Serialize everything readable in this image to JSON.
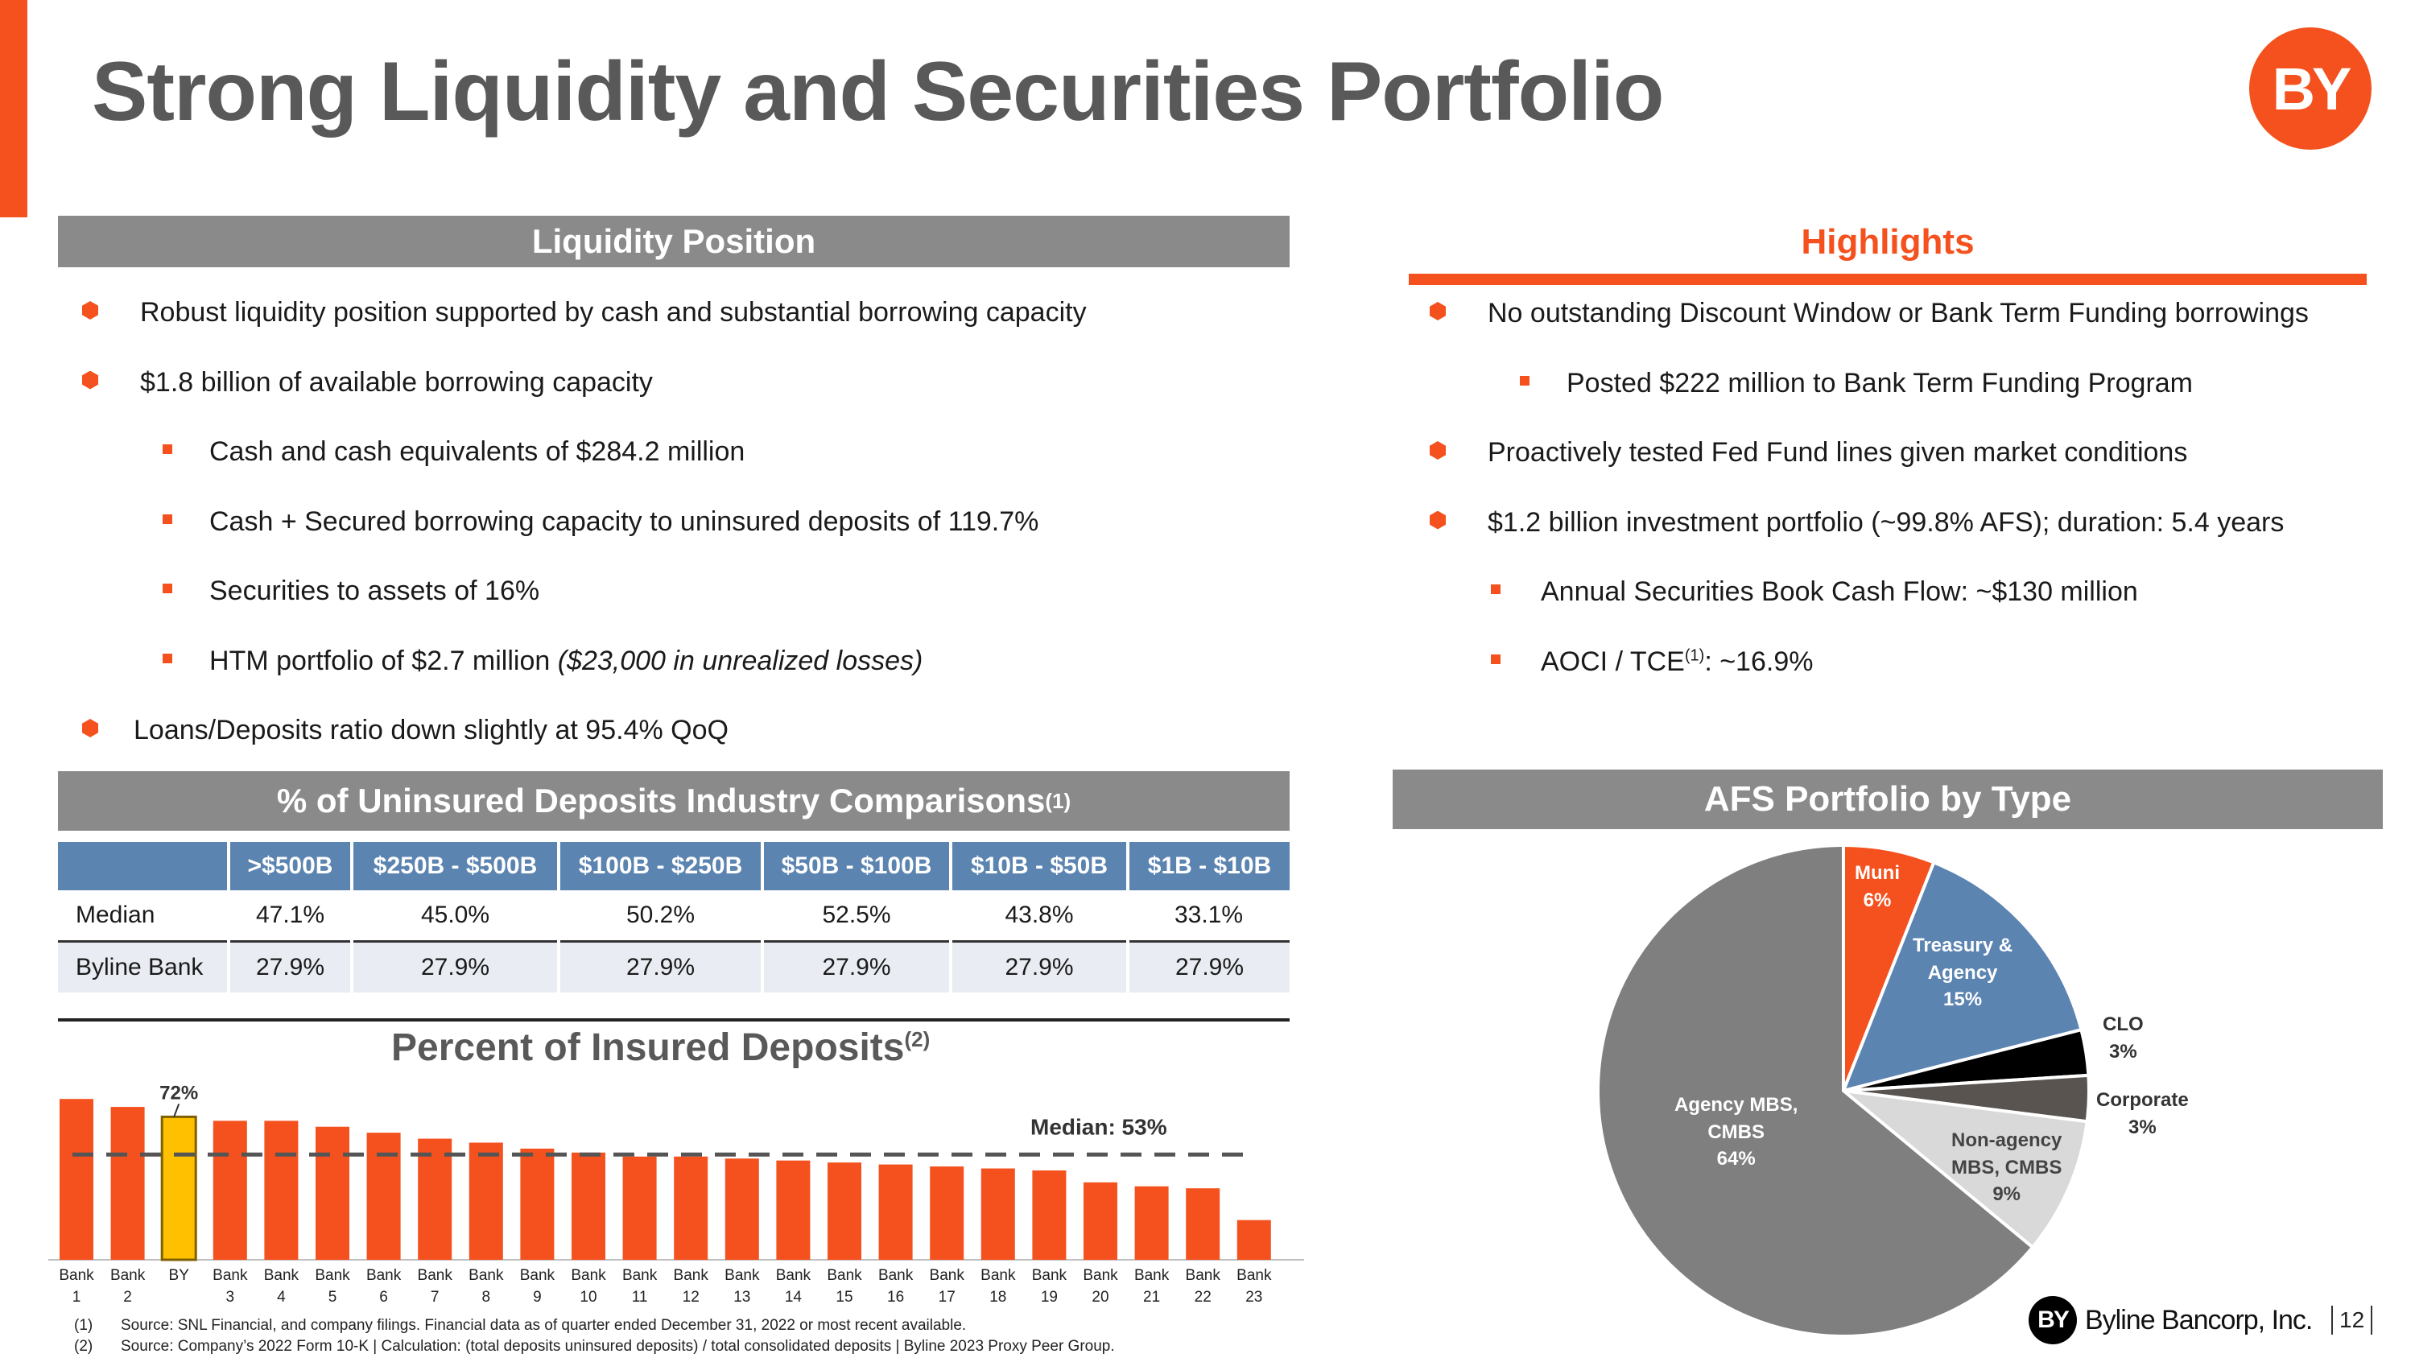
{
  "header": {
    "title": "Strong Liquidity and Securities Portfolio",
    "logo_text": "BY"
  },
  "liquidity": {
    "heading": "Liquidity Position",
    "items": [
      {
        "level": 1,
        "text": "Robust liquidity position supported by cash and substantial borrowing capacity"
      },
      {
        "level": 1,
        "text": "$1.8 billion of available borrowing capacity"
      },
      {
        "level": 2,
        "text": "Cash and cash equivalents of $284.2 million"
      },
      {
        "level": 2,
        "text": "Cash + Secured borrowing capacity to uninsured deposits of 119.7%"
      },
      {
        "level": 2,
        "text": "Securities to assets of 16%"
      },
      {
        "level": 2,
        "text": "HTM portfolio of $2.7 million ",
        "italic": "($23,000 in unrealized losses)"
      },
      {
        "level": 1,
        "text": "Loans/Deposits ratio down slightly at 95.4% QoQ"
      }
    ]
  },
  "highlights": {
    "heading": "Highlights",
    "items": [
      {
        "level": 1,
        "text": "No outstanding Discount Window or Bank Term Funding borrowings"
      },
      {
        "level": 2,
        "text": "Posted $222 million to Bank Term Funding Program"
      },
      {
        "level": 1,
        "text": "Proactively tested Fed Fund lines given market conditions"
      },
      {
        "level": 1,
        "text": "$1.2 billion investment portfolio (~99.8% AFS); duration: 5.4 years"
      },
      {
        "level": 2,
        "text": "Annual Securities Book Cash Flow: ~$130 million"
      },
      {
        "level": 2,
        "text": "AOCI / TCE",
        "sup": "(1)",
        "after": ": ~16.9%"
      }
    ]
  },
  "uninsured": {
    "heading": "% of Uninsured Deposits Industry Comparisons",
    "heading_sup": "(1)",
    "columns": [
      ">$500B",
      "$250B - $500B",
      "$100B - $250B",
      "$50B - $100B",
      "$10B - $50B",
      "$1B - $10B"
    ],
    "rows": [
      {
        "label": "Median",
        "values": [
          "47.1%",
          "45.0%",
          "50.2%",
          "52.5%",
          "43.8%",
          "33.1%"
        ]
      },
      {
        "label": "Byline Bank",
        "values": [
          "27.9%",
          "27.9%",
          "27.9%",
          "27.9%",
          "27.9%",
          "27.9%"
        ]
      }
    ]
  },
  "chart_data": [
    {
      "type": "bar",
      "title": "Percent of Insured Deposits",
      "title_sup": "(2)",
      "categories": [
        "Bank 1",
        "Bank 2",
        "BY",
        "Bank 3",
        "Bank 4",
        "Bank 5",
        "Bank 6",
        "Bank 7",
        "Bank 8",
        "Bank 9",
        "Bank 10",
        "Bank 11",
        "Bank 12",
        "Bank 13",
        "Bank 14",
        "Bank 15",
        "Bank 16",
        "Bank 17",
        "Bank 18",
        "Bank 19",
        "Bank 20",
        "Bank 21",
        "Bank 22",
        "Bank 23"
      ],
      "values": [
        81,
        77,
        72,
        70,
        70,
        67,
        64,
        61,
        59,
        56,
        54,
        52,
        52,
        51,
        50,
        49,
        48,
        47,
        46,
        45,
        39,
        37,
        36,
        20
      ],
      "highlight": "BY",
      "highlight_label": "72%",
      "median": 53,
      "median_label": "Median: 53%",
      "ylim": [
        0,
        90
      ],
      "xlabel": "",
      "ylabel": "",
      "colors": {
        "bar": "#f4511e",
        "highlight": "#ffc000",
        "highlight_border": "#7f6000",
        "median_line": "#555555"
      }
    },
    {
      "type": "pie",
      "title": "AFS Portfolio by Type",
      "slices": [
        {
          "name": "Muni",
          "value": 6,
          "label": "6%",
          "color": "#f4511e"
        },
        {
          "name": "Treasury & Agency",
          "value": 15,
          "label": "15%",
          "color": "#5b84b1"
        },
        {
          "name": "CLO",
          "value": 3,
          "label": "3%",
          "color": "#000000"
        },
        {
          "name": "Corporate",
          "value": 3,
          "label": "3%",
          "color": "#595450"
        },
        {
          "name": "Non-agency MBS, CMBS",
          "value": 9,
          "label": "9%",
          "color": "#d9d9d9"
        },
        {
          "name": "Agency MBS, CMBS",
          "value": 64,
          "label": "64%",
          "color": "#7f7f7f"
        }
      ]
    }
  ],
  "pie_labels": {
    "muni": [
      "Muni",
      "6%"
    ],
    "treasury": [
      "Treasury &",
      "Agency",
      "15%"
    ],
    "clo": [
      "CLO",
      "3%"
    ],
    "corporate": [
      "Corporate",
      "3%"
    ],
    "nonagency": [
      "Non-agency",
      "MBS, CMBS",
      "9%"
    ],
    "agency": [
      "Agency MBS,",
      "CMBS",
      "64%"
    ]
  },
  "footnotes": [
    {
      "num": "(1)",
      "text": "Source: SNL Financial, and company filings. Financial data as of quarter ended December 31, 2022 or most recent available."
    },
    {
      "num": "(2)",
      "text": "Source: Company’s 2022 Form 10-K | Calculation: (total deposits uninsured deposits) / total consolidated deposits | Byline 2023 Proxy Peer Group."
    }
  ],
  "footer": {
    "company": "Byline Bancorp, Inc.",
    "mark": "BY",
    "page_number": "12"
  }
}
